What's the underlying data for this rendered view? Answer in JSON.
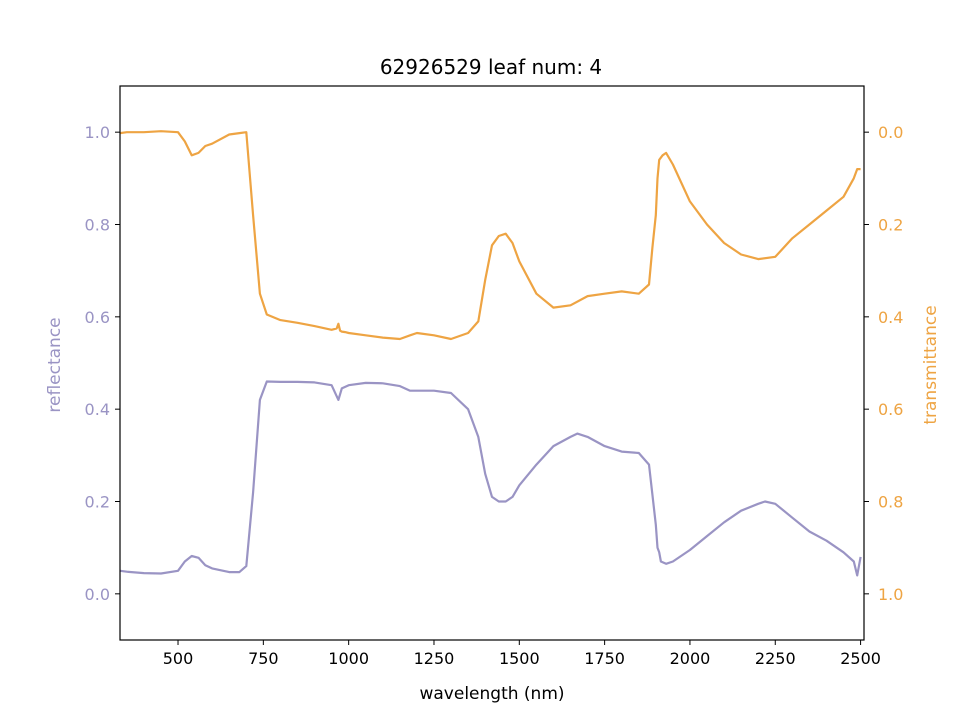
{
  "chart_data": {
    "type": "line",
    "title": "62926529 leaf num: 4",
    "xlabel": "wavelength (nm)",
    "ylabel_left": "reflectance",
    "ylabel_right": "transmittance",
    "xlim": [
      330,
      2510
    ],
    "ylim_left": [
      -0.1,
      1.1
    ],
    "ylim_right": [
      1.1,
      -0.1
    ],
    "right_axis_inverted": true,
    "grid": false,
    "x_ticks": [
      "500",
      "750",
      "1000",
      "1250",
      "1500",
      "1750",
      "2000",
      "2250",
      "2500"
    ],
    "y_ticks_left": [
      "0.0",
      "0.2",
      "0.4",
      "0.6",
      "0.8",
      "1.0"
    ],
    "y_ticks_right": [
      "0.0",
      "0.2",
      "0.4",
      "0.6",
      "0.8",
      "1.0"
    ],
    "colors": {
      "reflectance": "#9a94c4",
      "transmittance": "#eea443",
      "axis": "#000000"
    },
    "series": [
      {
        "name": "reflectance",
        "axis": "left",
        "x": [
          330,
          350,
          400,
          450,
          500,
          520,
          540,
          560,
          580,
          600,
          650,
          680,
          700,
          720,
          740,
          760,
          800,
          850,
          900,
          950,
          970,
          980,
          1000,
          1050,
          1100,
          1150,
          1180,
          1200,
          1250,
          1300,
          1350,
          1380,
          1400,
          1420,
          1440,
          1460,
          1480,
          1500,
          1550,
          1600,
          1650,
          1670,
          1700,
          1750,
          1800,
          1850,
          1880,
          1900,
          1905,
          1910,
          1915,
          1930,
          1950,
          2000,
          2050,
          2100,
          2150,
          2200,
          2220,
          2250,
          2300,
          2350,
          2400,
          2450,
          2480,
          2490,
          2500
        ],
        "y": [
          0.05,
          0.048,
          0.045,
          0.044,
          0.05,
          0.07,
          0.082,
          0.078,
          0.062,
          0.055,
          0.047,
          0.047,
          0.06,
          0.22,
          0.42,
          0.46,
          0.459,
          0.459,
          0.458,
          0.452,
          0.42,
          0.445,
          0.452,
          0.457,
          0.456,
          0.45,
          0.44,
          0.44,
          0.44,
          0.435,
          0.4,
          0.34,
          0.26,
          0.21,
          0.2,
          0.2,
          0.21,
          0.235,
          0.28,
          0.32,
          0.34,
          0.347,
          0.34,
          0.32,
          0.308,
          0.305,
          0.28,
          0.15,
          0.1,
          0.09,
          0.07,
          0.065,
          0.07,
          0.095,
          0.125,
          0.155,
          0.18,
          0.195,
          0.2,
          0.195,
          0.165,
          0.135,
          0.115,
          0.09,
          0.07,
          0.04,
          0.08
        ]
      },
      {
        "name": "transmittance",
        "axis": "right",
        "x": [
          330,
          350,
          400,
          450,
          500,
          520,
          540,
          560,
          580,
          600,
          650,
          680,
          700,
          720,
          740,
          760,
          800,
          850,
          900,
          950,
          965,
          970,
          975,
          980,
          990,
          1000,
          1050,
          1100,
          1150,
          1180,
          1200,
          1250,
          1300,
          1350,
          1380,
          1400,
          1420,
          1440,
          1460,
          1480,
          1500,
          1550,
          1600,
          1650,
          1700,
          1750,
          1800,
          1850,
          1880,
          1890,
          1900,
          1905,
          1910,
          1920,
          1930,
          1950,
          2000,
          2050,
          2100,
          2150,
          2200,
          2250,
          2300,
          2350,
          2400,
          2450,
          2480,
          2490,
          2500
        ],
        "y": [
          0.002,
          0.0,
          0.0,
          -0.002,
          0.0,
          0.02,
          0.05,
          0.045,
          0.03,
          0.025,
          0.005,
          0.002,
          0.0,
          0.18,
          0.35,
          0.395,
          0.407,
          0.413,
          0.42,
          0.428,
          0.425,
          0.415,
          0.43,
          0.432,
          0.433,
          0.435,
          0.44,
          0.445,
          0.448,
          0.44,
          0.435,
          0.44,
          0.448,
          0.435,
          0.41,
          0.32,
          0.245,
          0.225,
          0.22,
          0.24,
          0.28,
          0.35,
          0.38,
          0.375,
          0.355,
          0.35,
          0.345,
          0.35,
          0.33,
          0.25,
          0.18,
          0.1,
          0.06,
          0.05,
          0.045,
          0.07,
          0.15,
          0.2,
          0.24,
          0.265,
          0.275,
          0.27,
          0.23,
          0.2,
          0.17,
          0.14,
          0.1,
          0.08,
          0.08
        ]
      }
    ]
  }
}
